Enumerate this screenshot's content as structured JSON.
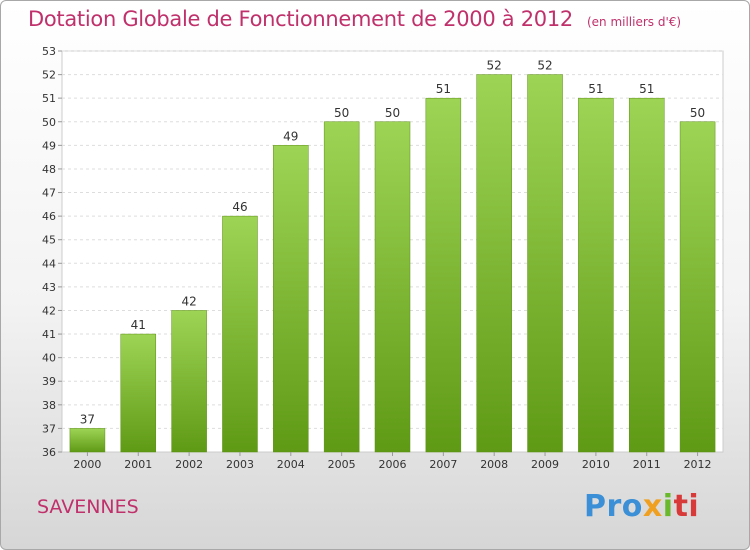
{
  "header": {
    "title": "Dotation Globale de Fonctionnement de 2000 à 2012",
    "unit": "(en milliers d'€)"
  },
  "footer": {
    "commune": "SAVENNES",
    "logo": [
      "Pro",
      "x",
      "i",
      "ti"
    ]
  },
  "colors": {
    "title": "#c0306b",
    "bar_top": "#9ed455",
    "bar_bottom": "#5f9a15"
  },
  "chart_data": {
    "type": "bar",
    "title": "Dotation Globale de Fonctionnement de 2000 à 2012",
    "subtitle": "(en milliers d'€)",
    "xlabel": "",
    "ylabel": "",
    "categories": [
      "2000",
      "2001",
      "2002",
      "2003",
      "2004",
      "2005",
      "2006",
      "2007",
      "2008",
      "2009",
      "2010",
      "2011",
      "2012"
    ],
    "values": [
      37,
      41,
      42,
      46,
      49,
      50,
      50,
      51,
      52,
      52,
      51,
      51,
      50
    ],
    "ylim": [
      36,
      53
    ],
    "yticks": [
      36,
      37,
      38,
      39,
      40,
      41,
      42,
      43,
      44,
      45,
      46,
      47,
      48,
      49,
      50,
      51,
      52,
      53
    ],
    "grid": true,
    "legend": "none"
  }
}
